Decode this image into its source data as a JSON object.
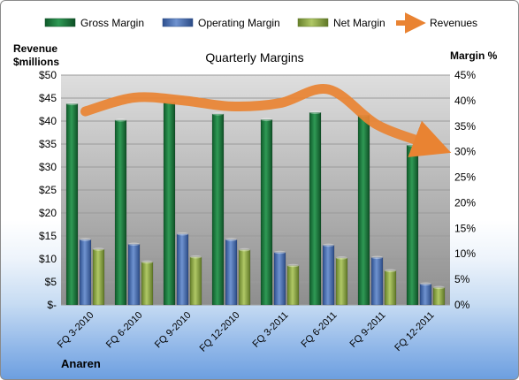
{
  "chart_data": {
    "type": "bar",
    "title": "Quarterly Margins",
    "company": "Anaren",
    "categories": [
      "FQ 3-2010",
      "FQ 6-2010",
      "FQ 9-2010",
      "FQ 12-2010",
      "FQ 3-2011",
      "FQ 6-2011",
      "FQ 9-2011",
      "FQ 12-2011"
    ],
    "series": [
      {
        "name": "Gross Margin",
        "type": "bar",
        "axis": "right",
        "color": "#1f7a3f",
        "values": [
          39.4,
          36.2,
          39.7,
          37.4,
          36.3,
          37.7,
          37.2,
          31.3
        ]
      },
      {
        "name": "Operating Margin",
        "type": "bar",
        "axis": "right",
        "color": "#4a70b5",
        "values": [
          12.8,
          11.9,
          13.9,
          12.8,
          10.3,
          11.7,
          9.3,
          4.1
        ]
      },
      {
        "name": "Net Margin",
        "type": "bar",
        "axis": "right",
        "color": "#8ea845",
        "values": [
          10.9,
          8.4,
          9.4,
          10.8,
          7.7,
          9.2,
          6.7,
          3.4
        ]
      },
      {
        "name": "Revenues",
        "type": "line",
        "axis": "left",
        "color": "#e98332",
        "values": [
          42.1,
          45.1,
          44.5,
          43.2,
          43.9,
          46.9,
          39.2,
          35.2
        ]
      }
    ],
    "y_left": {
      "label_line1": "Revenue",
      "label_line2": "$millions",
      "min": 0,
      "max": 50,
      "step": 5,
      "tick_labels": [
        "$-",
        "$5",
        "$10",
        "$15",
        "$20",
        "$25",
        "$30",
        "$35",
        "$40",
        "$45",
        "$50"
      ]
    },
    "y_right": {
      "label": "Margin %",
      "min": 0,
      "max": 45,
      "step": 5,
      "tick_labels": [
        "0%",
        "5%",
        "10%",
        "15%",
        "20%",
        "25%",
        "30%",
        "35%",
        "40%",
        "45%"
      ]
    },
    "legend_position": "top",
    "grid": true
  }
}
